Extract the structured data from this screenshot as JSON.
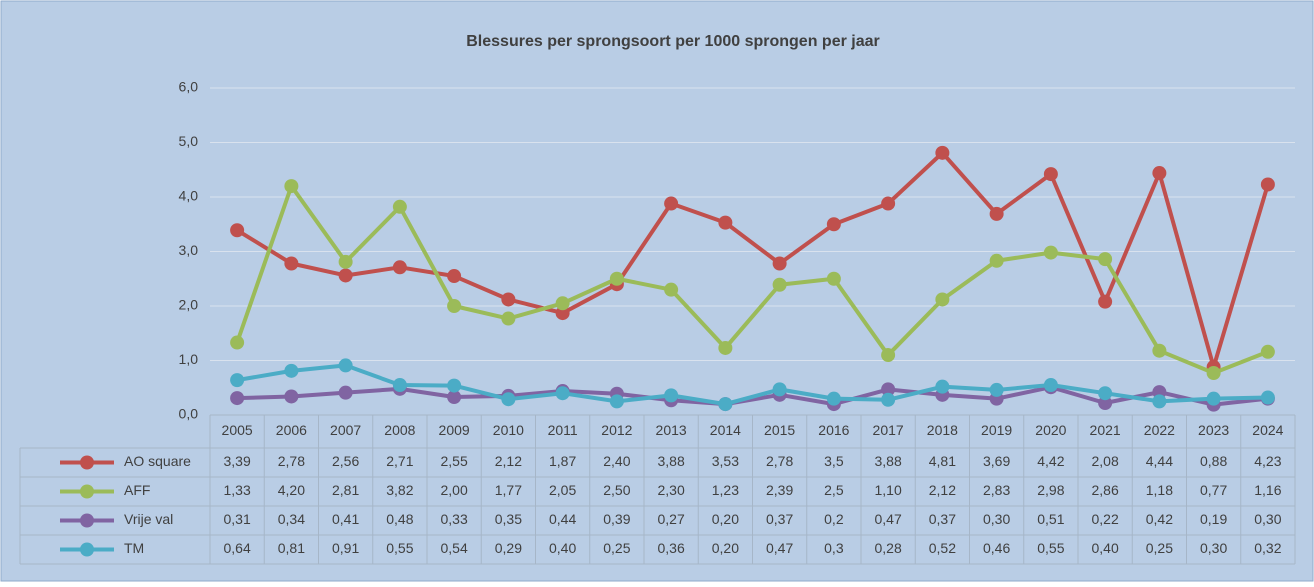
{
  "chart_data": {
    "type": "line",
    "title": "Blessures per sprongsoort per 1000 sprongen per jaar",
    "categories": [
      "2005",
      "2006",
      "2007",
      "2008",
      "2009",
      "2010",
      "2011",
      "2012",
      "2013",
      "2014",
      "2015",
      "2016",
      "2017",
      "2018",
      "2019",
      "2020",
      "2021",
      "2022",
      "2023",
      "2024"
    ],
    "series": [
      {
        "name": "AO square",
        "color": "#c0504d",
        "values": [
          3.39,
          2.78,
          2.56,
          2.71,
          2.55,
          2.12,
          1.87,
          2.4,
          3.88,
          3.53,
          2.78,
          3.5,
          3.88,
          4.81,
          3.69,
          4.42,
          2.08,
          4.44,
          0.88,
          4.23
        ],
        "value_labels": [
          "3,39",
          "2,78",
          "2,56",
          "2,71",
          "2,55",
          "2,12",
          "1,87",
          "2,40",
          "3,88",
          "3,53",
          "2,78",
          "3,5",
          "3,88",
          "4,81",
          "3,69",
          "4,42",
          "2,08",
          "4,44",
          "0,88",
          "4,23"
        ]
      },
      {
        "name": "AFF",
        "color": "#9bbb59",
        "values": [
          1.33,
          4.2,
          2.81,
          3.82,
          2.0,
          1.77,
          2.05,
          2.5,
          2.3,
          1.23,
          2.39,
          2.5,
          1.1,
          2.12,
          2.83,
          2.98,
          2.86,
          1.18,
          0.77,
          1.16
        ],
        "value_labels": [
          "1,33",
          "4,20",
          "2,81",
          "3,82",
          "2,00",
          "1,77",
          "2,05",
          "2,50",
          "2,30",
          "1,23",
          "2,39",
          "2,5",
          "1,10",
          "2,12",
          "2,83",
          "2,98",
          "2,86",
          "1,18",
          "0,77",
          "1,16"
        ]
      },
      {
        "name": "Vrije val",
        "color": "#8064a2",
        "values": [
          0.31,
          0.34,
          0.41,
          0.48,
          0.33,
          0.35,
          0.44,
          0.39,
          0.27,
          0.2,
          0.37,
          0.2,
          0.47,
          0.37,
          0.3,
          0.51,
          0.22,
          0.42,
          0.19,
          0.3
        ],
        "value_labels": [
          "0,31",
          "0,34",
          "0,41",
          "0,48",
          "0,33",
          "0,35",
          "0,44",
          "0,39",
          "0,27",
          "0,20",
          "0,37",
          "0,2",
          "0,47",
          "0,37",
          "0,30",
          "0,51",
          "0,22",
          "0,42",
          "0,19",
          "0,30"
        ]
      },
      {
        "name": "TM",
        "color": "#4bacc6",
        "values": [
          0.64,
          0.81,
          0.91,
          0.55,
          0.54,
          0.29,
          0.4,
          0.25,
          0.36,
          0.2,
          0.47,
          0.3,
          0.28,
          0.52,
          0.46,
          0.55,
          0.4,
          0.25,
          0.3,
          0.32
        ],
        "value_labels": [
          "0,64",
          "0,81",
          "0,91",
          "0,55",
          "0,54",
          "0,29",
          "0,40",
          "0,25",
          "0,36",
          "0,20",
          "0,47",
          "0,3",
          "0,28",
          "0,52",
          "0,46",
          "0,55",
          "0,40",
          "0,25",
          "0,30",
          "0,32"
        ]
      }
    ],
    "ylim": [
      0,
      6
    ],
    "yticks": [
      {
        "value": 0,
        "label": "0,0"
      },
      {
        "value": 1,
        "label": "1,0"
      },
      {
        "value": 2,
        "label": "2,0"
      },
      {
        "value": 3,
        "label": "3,0"
      },
      {
        "value": 4,
        "label": "4,0"
      },
      {
        "value": 5,
        "label": "5,0"
      },
      {
        "value": 6,
        "label": "6,0"
      }
    ],
    "grid": true
  }
}
